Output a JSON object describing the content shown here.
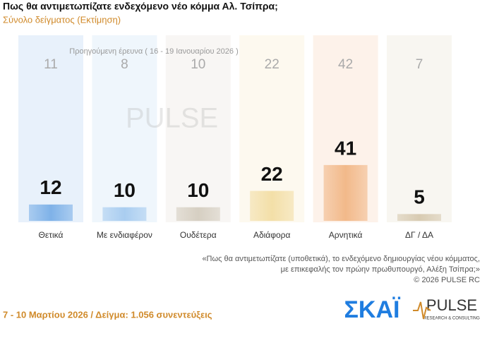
{
  "chart_data": {
    "type": "bar",
    "title": "Πως θα αντιμετωπίζατε ενδεχόμενο νέο κόμμα Αλ. Τσίπρα;",
    "subtitle": "Σύνολο δείγματος  (Εκτίμηση)",
    "categories": [
      "Θετικά",
      "Με ενδιαφέρον",
      "Ουδέτερα",
      "Αδιάφορα",
      "Αρνητικά",
      "ΔΓ / ΔΑ"
    ],
    "values": [
      12,
      10,
      10,
      22,
      41,
      5
    ],
    "colors": [
      "#7fb2e8",
      "#a9cdf0",
      "#d6cfc2",
      "#f3dfa8",
      "#f2b98a",
      "#d8cbb2"
    ],
    "previous": {
      "label": "Προηγούμενη έρευνα ( 16 - 19 Ιανουαρίου 2026 )",
      "values": [
        11,
        8,
        10,
        22,
        42,
        7
      ]
    },
    "note": [
      "«Πως θα αντιμετωπίζατε (υποθετικά), το ενδεχόμενο δημιουργίας νέου κόμματος,",
      "με επικεφαλής τον πρώην πρωθυπουργό, Αλέξη Τσίπρα;»",
      "©  2026  PULSE RC"
    ],
    "footer": "7 - 10  Μαρτίου 2026  /  Δείγμα:  1.056 συνεντεύξεις",
    "logos": {
      "skai": "ΣΚΑΪ",
      "pulse": "PULSE",
      "pulse_sub": "RESEARCH & CONSULTING"
    }
  }
}
